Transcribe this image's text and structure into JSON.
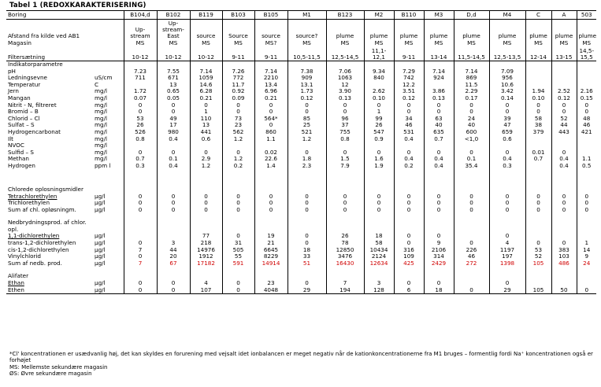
{
  "title": "Tabel 1 (REDOXKARAKTERISERING)",
  "columns": [
    "B104,d",
    "B102",
    "B119",
    "B103",
    "B105",
    "M1",
    "B123",
    "M2",
    "B110",
    "M3",
    "D,d",
    "M4",
    "C",
    "A",
    "503"
  ],
  "header_rows": [
    {
      "label": "Afstand fra kilde ved AB1",
      "unit": "",
      "values": [
        "Up-stream",
        "Up-\nstream-\nEast",
        "source",
        "Source",
        "source",
        "source?",
        "plume",
        "plume",
        "plume",
        "plume",
        "plume",
        "plume",
        "plume",
        "plume",
        "plume"
      ]
    },
    {
      "label": "Magasin",
      "unit": "",
      "values": [
        "MS",
        "MS",
        "MS",
        "MS",
        "MS?",
        "MS",
        "MS",
        "MS",
        "MS",
        "MS",
        "MS",
        "MS",
        "MS",
        "MS",
        "MS"
      ]
    },
    {
      "label": "Filtersætning",
      "unit": "",
      "values": [
        "10-12",
        "10-12",
        "10-12",
        "9-11",
        "9-11",
        "10,5-11,5",
        "12,5-14,5",
        "11,1-\n12,1",
        "9-11",
        "13-14",
        "11,5-14,5",
        "12,5-13,5",
        "12-14",
        "13-15",
        "14,5-\n15,5"
      ]
    }
  ],
  "sections": [
    {
      "title": "Indikatorparametre",
      "rows": [
        {
          "label": "pH",
          "unit": "",
          "values": [
            "7.23",
            "7.55",
            "7.14",
            "7.26",
            "7.14",
            "7.38",
            "7.06",
            "9.34",
            "7.29",
            "7.14",
            "7.14",
            "7.09",
            "",
            "",
            ""
          ]
        },
        {
          "label": "Ledningsevne",
          "unit": "uS/cm",
          "values": [
            "711",
            "671",
            "1059",
            "772",
            "2210",
            "909",
            "1063",
            "840",
            "742",
            "924",
            "869",
            "956",
            "",
            "",
            ""
          ]
        },
        {
          "label": "Temperatur",
          "unit": "C",
          "values": [
            "",
            "13",
            "14.6",
            "11.7",
            "13.4",
            "13.1",
            "12",
            "",
            "12.2",
            "",
            "11.5",
            "10.6",
            "",
            "",
            ""
          ]
        },
        {
          "label": "Jern",
          "unit": "mg/l",
          "values": [
            "1.72",
            "0.65",
            "6.28",
            "0.92",
            "6.96",
            "1.73",
            "3.90",
            "2.62",
            "3.51",
            "3.86",
            "2.29",
            "3.42",
            "1.94",
            "2.52",
            "2.16"
          ]
        },
        {
          "label": "Mangan",
          "unit": "mg/l",
          "values": [
            "0.07",
            "0.05",
            "0.21",
            "0.09",
            "0.21",
            "0.12",
            "0.13",
            "0.10",
            "0.12",
            "0.13",
            "0.17",
            "0.14",
            "0.10",
            "0.12",
            "0.15"
          ]
        },
        {
          "label": "Nitrit - N, filtreret",
          "unit": "mg/l",
          "values": [
            "0",
            "0",
            "0",
            "0",
            "0",
            "0",
            "0",
            "0",
            "0",
            "0",
            "0",
            "0",
            "0",
            "0",
            "0"
          ]
        },
        {
          "label": "Bromid – B",
          "unit": "mg/l",
          "values": [
            "0",
            "0",
            "1",
            "0",
            "0",
            "0",
            "0",
            "1",
            "0",
            "0",
            "0",
            "0",
            "0",
            "0",
            "0"
          ]
        },
        {
          "label": "Chlorid – Cl",
          "unit": "mg/l",
          "values": [
            "53",
            "49",
            "110",
            "73",
            "564*",
            "85",
            "96",
            "99",
            "34",
            "63",
            "24",
            "39",
            "58",
            "52",
            "48"
          ]
        },
        {
          "label": "Sulfat – S",
          "unit": "mg/l",
          "values": [
            "26",
            "17",
            "13",
            "23",
            "0",
            "25",
            "37",
            "26",
            "46",
            "40",
            "40",
            "47",
            "38",
            "44",
            "46"
          ]
        },
        {
          "label": "Hydrogencarbonat",
          "unit": "mg/l",
          "values": [
            "526",
            "980",
            "441",
            "562",
            "860",
            "521",
            "755",
            "547",
            "531",
            "635",
            "600",
            "659",
            "379",
            "443",
            "421"
          ]
        },
        {
          "label": "Ilt",
          "unit": "mg/l",
          "values": [
            "0.8",
            "0.4",
            "0.6",
            "1.2",
            "1.1",
            "1.2",
            "0.8",
            "0.9",
            "0.4",
            "0.7",
            "<1,0",
            "0.6",
            "",
            "",
            ""
          ]
        },
        {
          "label": "NVOC",
          "unit": "mg/l",
          "values": [
            "",
            "",
            "",
            "",
            "",
            "",
            "",
            "",
            "",
            "",
            "",
            "",
            "",
            "",
            ""
          ]
        },
        {
          "label": "Sulfid – S",
          "unit": "mg/l",
          "values": [
            "0",
            "0",
            "0",
            "0",
            "0.02",
            "0",
            "0",
            "0",
            "0",
            "0",
            "0",
            "0",
            "0.01",
            "0",
            ""
          ]
        },
        {
          "label": "Methan",
          "unit": "mg/l",
          "values": [
            "0.7",
            "0.1",
            "2.9",
            "1.2",
            "22.6",
            "1.8",
            "1.5",
            "1.6",
            "0.4",
            "0.4",
            "0.1",
            "0.4",
            "0.7",
            "0.4",
            "1.1"
          ]
        },
        {
          "label": "Hydrogen",
          "unit": "ppm l",
          "values": [
            "0.3",
            "0.4",
            "1.2",
            "0.2",
            "1.4",
            "2.3",
            "7.9",
            "1.9",
            "0.2",
            "0.4",
            "35.4",
            "0.3",
            "",
            "0.4",
            "0.5"
          ]
        }
      ]
    },
    {
      "title": "Chlorede oplosningsmidler",
      "rows": [
        {
          "label": "Tetrachlorethylen",
          "unit": "µg/l",
          "values": [
            "0",
            "0",
            "0",
            "0",
            "0",
            "0",
            "0",
            "0",
            "0",
            "0",
            "0",
            "0",
            "0",
            "0",
            "0"
          ]
        },
        {
          "label": "Trichlorethylen",
          "unit": "µg/l",
          "values": [
            "0",
            "0",
            "0",
            "0",
            "0",
            "0",
            "0",
            "0",
            "0",
            "0",
            "0",
            "0",
            "0",
            "0",
            "0"
          ]
        },
        {
          "label": "Sum af chl. opløsningm.",
          "unit": "µg/l",
          "values": [
            "0",
            "0",
            "0",
            "0",
            "0",
            "0",
            "0",
            "0",
            "0",
            "0",
            "0",
            "0",
            "0",
            "0",
            "0"
          ]
        }
      ]
    },
    {
      "title": "Nedbrydningsprod. af chlor. opl.",
      "rows": [
        {
          "label": "1,1-dichlorethylen",
          "unit": "µg/l",
          "values": [
            "",
            "",
            "77",
            "0",
            "19",
            "0",
            "26",
            "18",
            "0",
            "0",
            "",
            "0",
            "",
            "",
            ""
          ]
        },
        {
          "label": "trans-1,2-dichlorethylen",
          "unit": "µg/l",
          "values": [
            "0",
            "3",
            "218",
            "31",
            "21",
            "0",
            "78",
            "58",
            "0",
            "9",
            "0",
            "4",
            "0",
            "0",
            "1"
          ]
        },
        {
          "label": "cis-1,2-dichlorethylen",
          "unit": "µg/l",
          "values": [
            "7",
            "44",
            "14976",
            "505",
            "6645",
            "18",
            "12850",
            "10434",
            "316",
            "2106",
            "226",
            "1197",
            "53",
            "383",
            "14"
          ]
        },
        {
          "label": "Vinylchlorid",
          "unit": "µg/l",
          "values": [
            "0",
            "20",
            "1912",
            "55",
            "8229",
            "33",
            "3476",
            "2124",
            "109",
            "314",
            "46",
            "197",
            "52",
            "103",
            "9"
          ]
        },
        {
          "label": "Sum af nedb. prod.",
          "unit": "µg/l",
          "red": true,
          "values": [
            "7",
            "67",
            "17182",
            "591",
            "14914",
            "51",
            "16430",
            "12634",
            "425",
            "2429",
            "272",
            "1398",
            "105",
            "486",
            "24"
          ]
        }
      ]
    },
    {
      "title": "Alifater",
      "rows": [
        {
          "label": "Ethan",
          "unit": "µg/l",
          "values": [
            "0",
            "0",
            "4",
            "0",
            "23",
            "0",
            "7",
            "3",
            "0",
            "0",
            "",
            "0",
            "",
            "",
            ""
          ]
        },
        {
          "label": "Ethen",
          "unit": "µg/l",
          "values": [
            "0",
            "0",
            "107",
            "0",
            "4048",
            "29",
            "194",
            "128",
            "6",
            "18",
            "0",
            "29",
            "105",
            "50",
            "0"
          ]
        }
      ]
    }
  ],
  "header": {
    "boring_label": "Boring"
  },
  "notes": [
    "*Cl' koncentrationen er usædvanlig høj, det kan skyldes en forurening med vejsalt idet ionbalancen er meget negativ når de kationkoncentrationerne fra M1 bruges – formentlig fordi Na⁺ koncentrationen også er forhøjet",
    "MS: Mellemste sekundære magasin",
    "ØS: Øvre sekundære magasin"
  ]
}
